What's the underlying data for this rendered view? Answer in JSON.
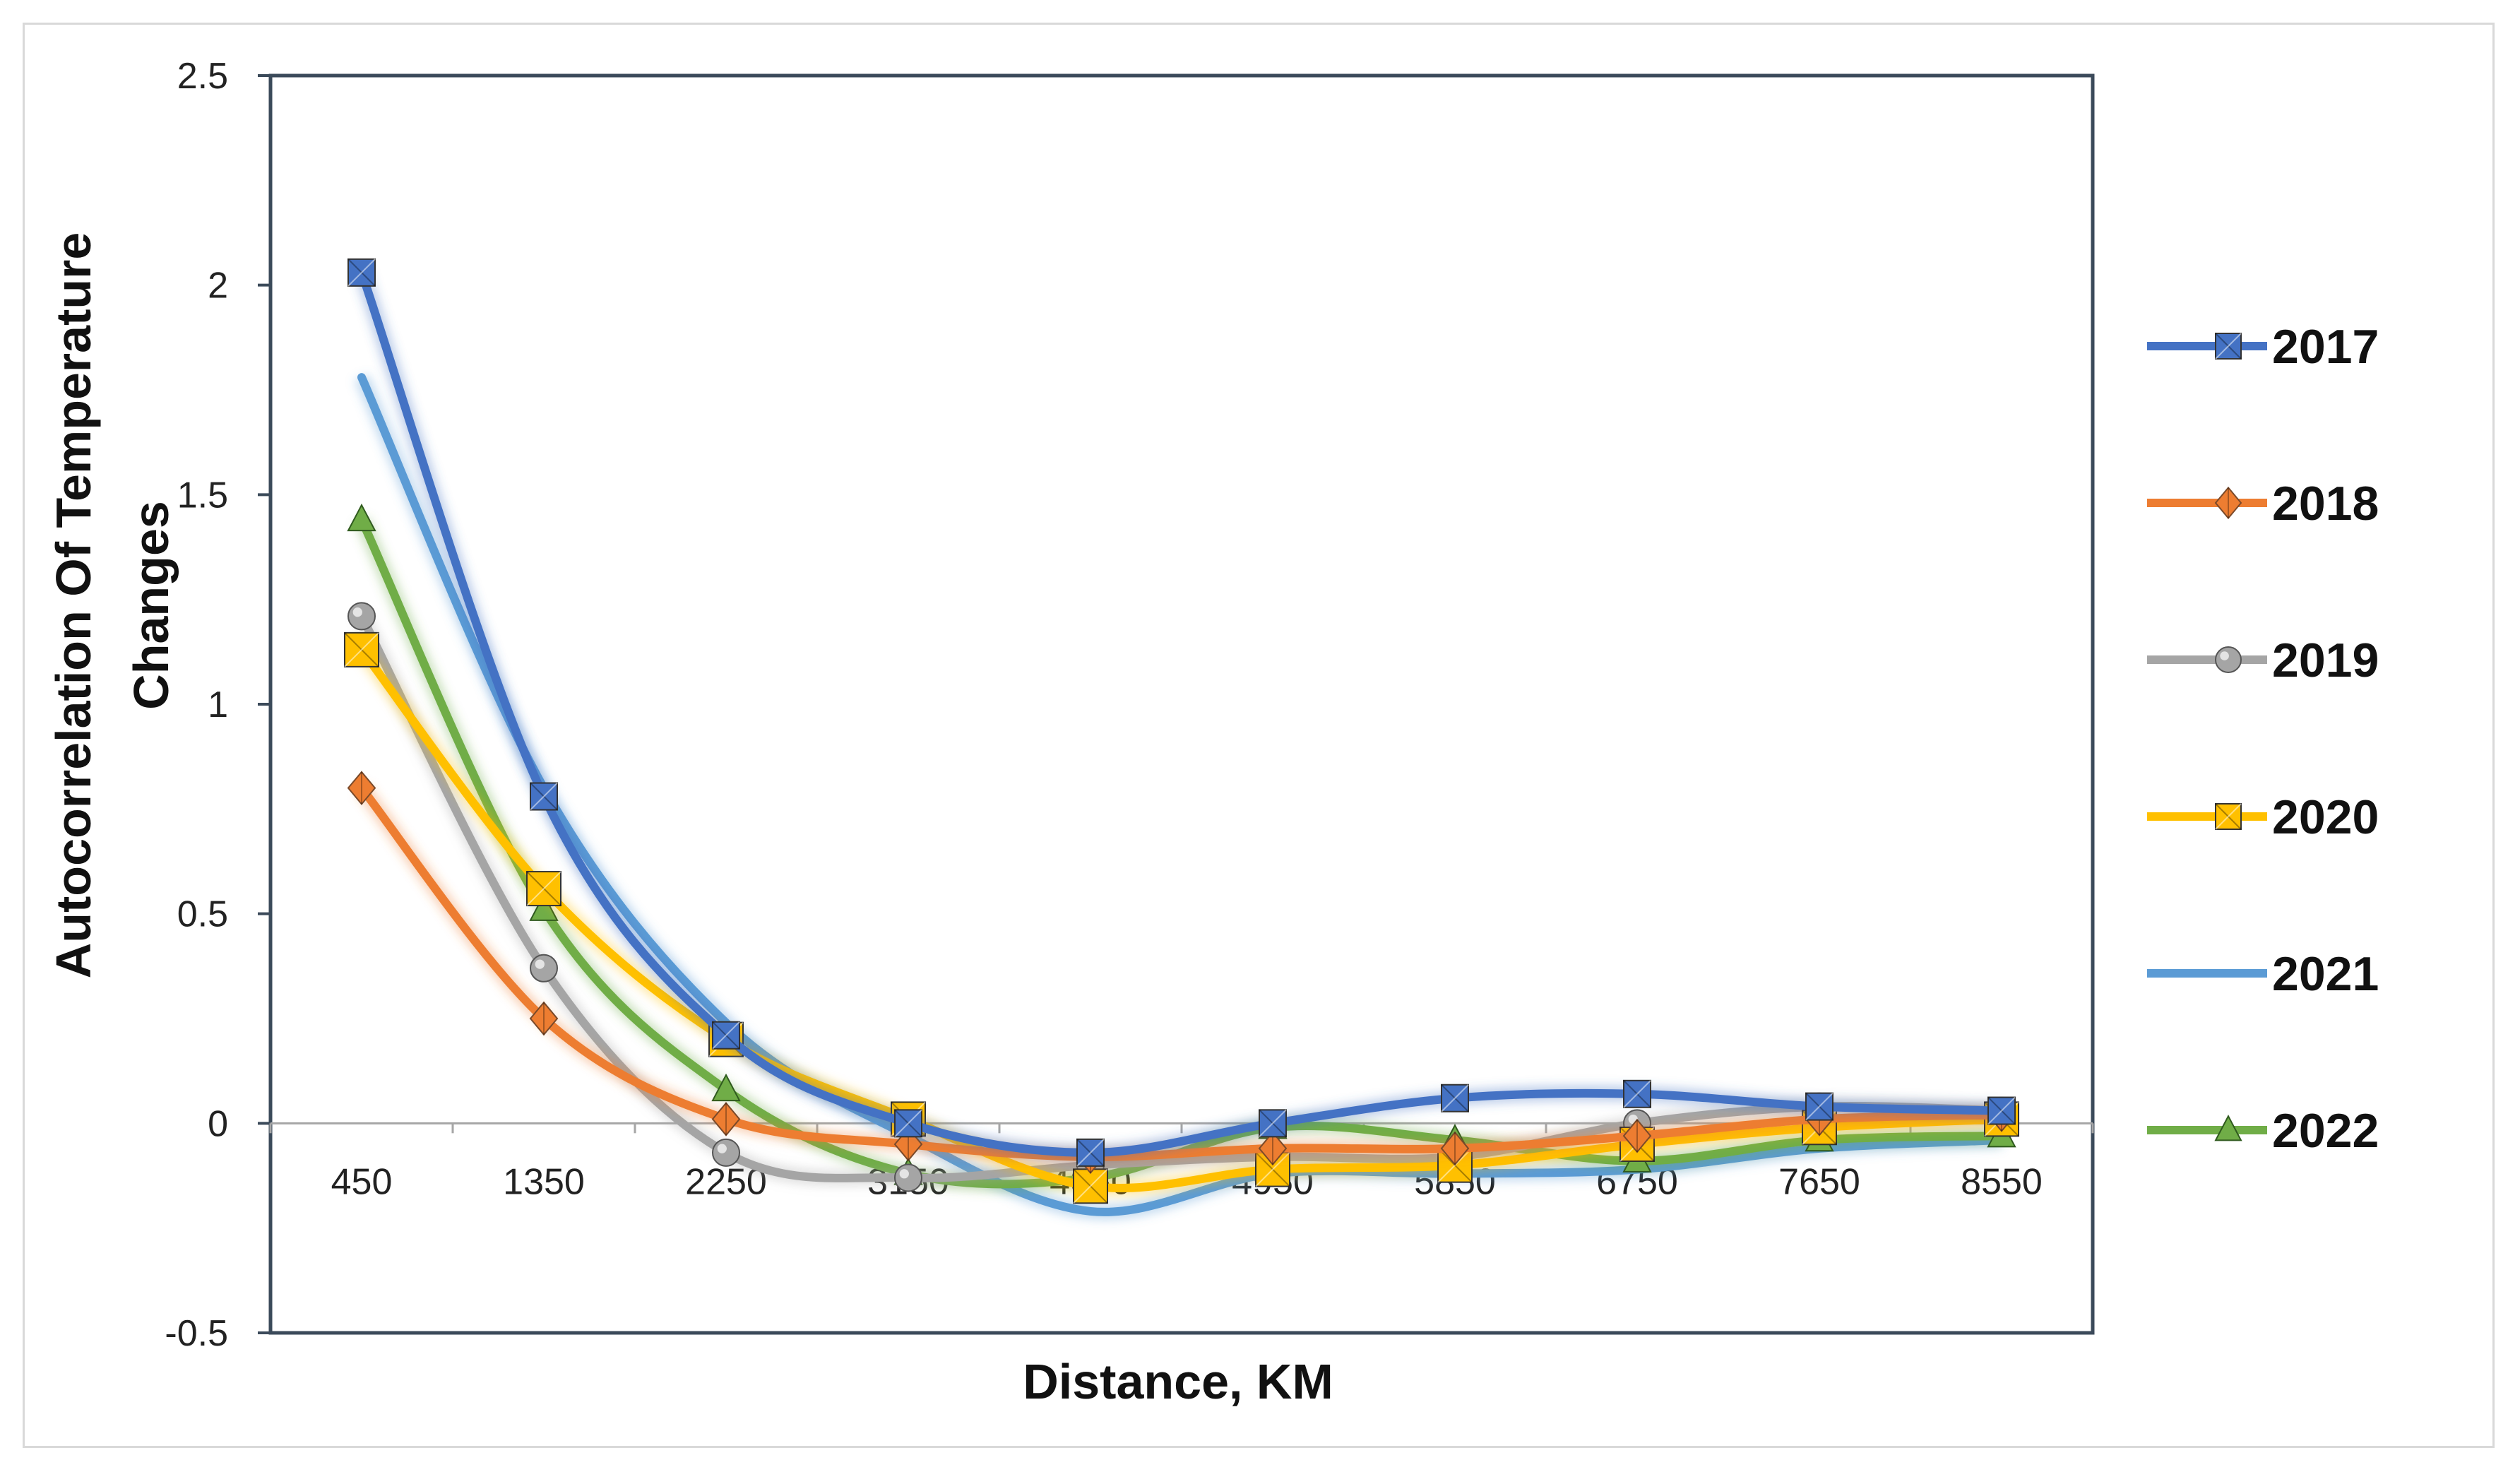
{
  "chart_data": {
    "type": "line",
    "title": "",
    "xlabel": "Distance, KM",
    "ylabel_lines": [
      "Autocorrelation Of Temperature",
      "Changes"
    ],
    "categories": [
      "450",
      "1350",
      "2250",
      "3150",
      "4050",
      "4950",
      "5850",
      "6750",
      "7650",
      "8550"
    ],
    "y_ticks": [
      "2.5",
      "2",
      "1.5",
      "1",
      "0.5",
      "0",
      "-0.5"
    ],
    "ylim": [
      -0.5,
      2.5
    ],
    "grid": false,
    "legend_position": "right",
    "series": [
      {
        "name": "2017",
        "color": "#4472c4",
        "marker": "square",
        "values": [
          2.03,
          0.78,
          0.21,
          0.0,
          -0.07,
          0.0,
          0.06,
          0.07,
          0.04,
          0.03
        ]
      },
      {
        "name": "2018",
        "color": "#ed7d31",
        "marker": "diamond",
        "values": [
          0.8,
          0.25,
          0.01,
          -0.05,
          -0.08,
          -0.06,
          -0.06,
          -0.03,
          0.01,
          0.02
        ]
      },
      {
        "name": "2019",
        "color": "#a5a5a5",
        "marker": "circle",
        "values": [
          1.21,
          0.37,
          -0.07,
          -0.13,
          -0.1,
          -0.08,
          -0.08,
          0.0,
          0.04,
          0.03
        ]
      },
      {
        "name": "2020",
        "color": "#ffc000",
        "marker": "square",
        "values": [
          1.13,
          0.56,
          0.2,
          0.01,
          -0.15,
          -0.11,
          -0.1,
          -0.05,
          -0.01,
          0.01
        ]
      },
      {
        "name": "2021",
        "color": "#5b9bd5",
        "marker": "none",
        "values": [
          1.78,
          0.8,
          0.24,
          -0.03,
          -0.21,
          -0.12,
          -0.12,
          -0.11,
          -0.06,
          -0.04
        ]
      },
      {
        "name": "2022",
        "color": "#70ad47",
        "marker": "triangle",
        "values": [
          1.44,
          0.51,
          0.08,
          -0.12,
          -0.13,
          -0.01,
          -0.04,
          -0.09,
          -0.04,
          -0.03
        ]
      }
    ]
  }
}
